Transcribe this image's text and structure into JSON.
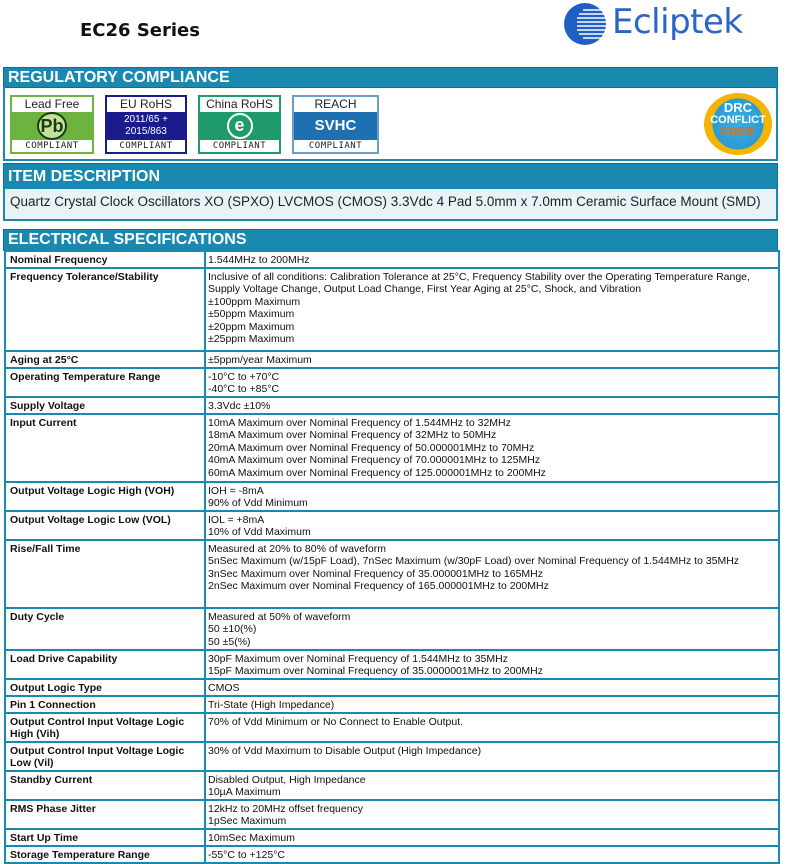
{
  "header": {
    "title": "EC26 Series",
    "logo": "Ecliptek",
    "logo_color": "#2a66c8"
  },
  "sections": {
    "regulatory": "REGULATORY COMPLIANCE",
    "item": "ITEM DESCRIPTION",
    "electrical": "ELECTRICAL SPECIFICATIONS"
  },
  "badges": [
    {
      "top": "Lead Free",
      "middle": [
        "Pb"
      ],
      "bottom": "COMPLIANT",
      "color": "#6db33f"
    },
    {
      "top": "EU RoHS",
      "middle": [
        "2011/65 +",
        "2015/863"
      ],
      "bottom": "COMPLIANT",
      "color": "#1b1c8c"
    },
    {
      "top": "China RoHS",
      "middle": [
        "e"
      ],
      "bottom": "COMPLIANT",
      "color": "#1f9a6a"
    },
    {
      "top": "REACH",
      "middle": [
        "SVHC"
      ],
      "bottom": "COMPLIANT",
      "color": "#1f6fb3"
    }
  ],
  "drc": {
    "line1": "DRC",
    "line2": "CONFLICT",
    "line3": "FREE"
  },
  "item_description": "Quartz Crystal Clock Oscillators XO (SPXO) LVCMOS (CMOS) 3.3Vdc 4 Pad 5.0mm x 7.0mm Ceramic Surface Mount (SMD)",
  "specs": [
    {
      "label": "Nominal Frequency",
      "values": [
        "1.544MHz to 200MHz"
      ]
    },
    {
      "label": "Frequency Tolerance/Stability",
      "values": [
        "Inclusive of all conditions: Calibration Tolerance at 25°C, Frequency Stability over the Operating Temperature Range, Supply Voltage Change, Output Load Change, First Year Aging at 25°C, Shock, and Vibration",
        "±100ppm Maximum",
        "±50ppm Maximum",
        "±20ppm Maximum",
        "±25ppm Maximum"
      ]
    },
    {
      "label": "Aging at 25°C",
      "values": [
        "±5ppm/year Maximum"
      ]
    },
    {
      "label": "Operating Temperature Range",
      "values": [
        "-10°C to +70°C",
        "-40°C to +85°C"
      ]
    },
    {
      "label": "Supply Voltage",
      "values": [
        "3.3Vdc ±10%"
      ]
    },
    {
      "label": "Input Current",
      "values": [
        "10mA Maximum over Nominal Frequency of 1.544MHz to 32MHz",
        "18mA Maximum over Nominal Frequency of 32MHz to 50MHz",
        "20mA Maximum over Nominal Frequency of 50.000001MHz to 70MHz",
        "40mA Maximum over Nominal Frequency of 70.000001MHz to 125MHz",
        "60mA Maximum over Nominal Frequency of 125.000001MHz to 200MHz"
      ]
    },
    {
      "label": "Output Voltage Logic High (VOH)",
      "values": [
        "IOH = -8mA",
        "90% of Vdd Minimum"
      ]
    },
    {
      "label": "Output Voltage Logic Low (VOL)",
      "values": [
        "IOL = +8mA",
        "10% of Vdd Maximum"
      ]
    },
    {
      "label": "Rise/Fall Time",
      "values": [
        "Measured at 20% to 80% of waveform",
        "5nSec Maximum (w/15pF Load), 7nSec Maximum (w/30pF Load) over Nominal Frequency of 1.544MHz to 35MHz",
        "3nSec Maximum over Nominal Frequency of 35.000001MHz to 165MHz",
        "2nSec Maximum over Nominal Frequency of 165.000001MHz to 200MHz"
      ]
    },
    {
      "label": "Duty Cycle",
      "values": [
        "Measured at 50% of waveform",
        "50 ±10(%)",
        "50 ±5(%)"
      ]
    },
    {
      "label": "Load Drive Capability",
      "values": [
        "30pF Maximum over Nominal Frequency of 1.544MHz to 35MHz",
        "15pF Maximum over Nominal Frequency of 35.0000001MHz to 200MHz"
      ]
    },
    {
      "label": "Output Logic Type",
      "values": [
        "CMOS"
      ]
    },
    {
      "label": "Pin 1 Connection",
      "values": [
        "Tri-State (High Impedance)"
      ]
    },
    {
      "label": "Output Control Input Voltage Logic High (Vih)",
      "values": [
        "70% of Vdd Minimum or No Connect to Enable Output."
      ]
    },
    {
      "label": "Output Control Input Voltage Logic Low (Vil)",
      "values": [
        "30% of Vdd Maximum to Disable Output (High Impedance)"
      ]
    },
    {
      "label": "Standby Current",
      "values": [
        "Disabled Output, High Impedance",
        "10µA Maximum"
      ]
    },
    {
      "label": "RMS Phase Jitter",
      "values": [
        "12kHz to 20MHz offset frequency",
        "1pSec Maximum"
      ]
    },
    {
      "label": "Start Up Time",
      "values": [
        "10mSec Maximum"
      ]
    },
    {
      "label": "Storage Temperature Range",
      "values": [
        "-55°C to +125°C"
      ]
    }
  ]
}
